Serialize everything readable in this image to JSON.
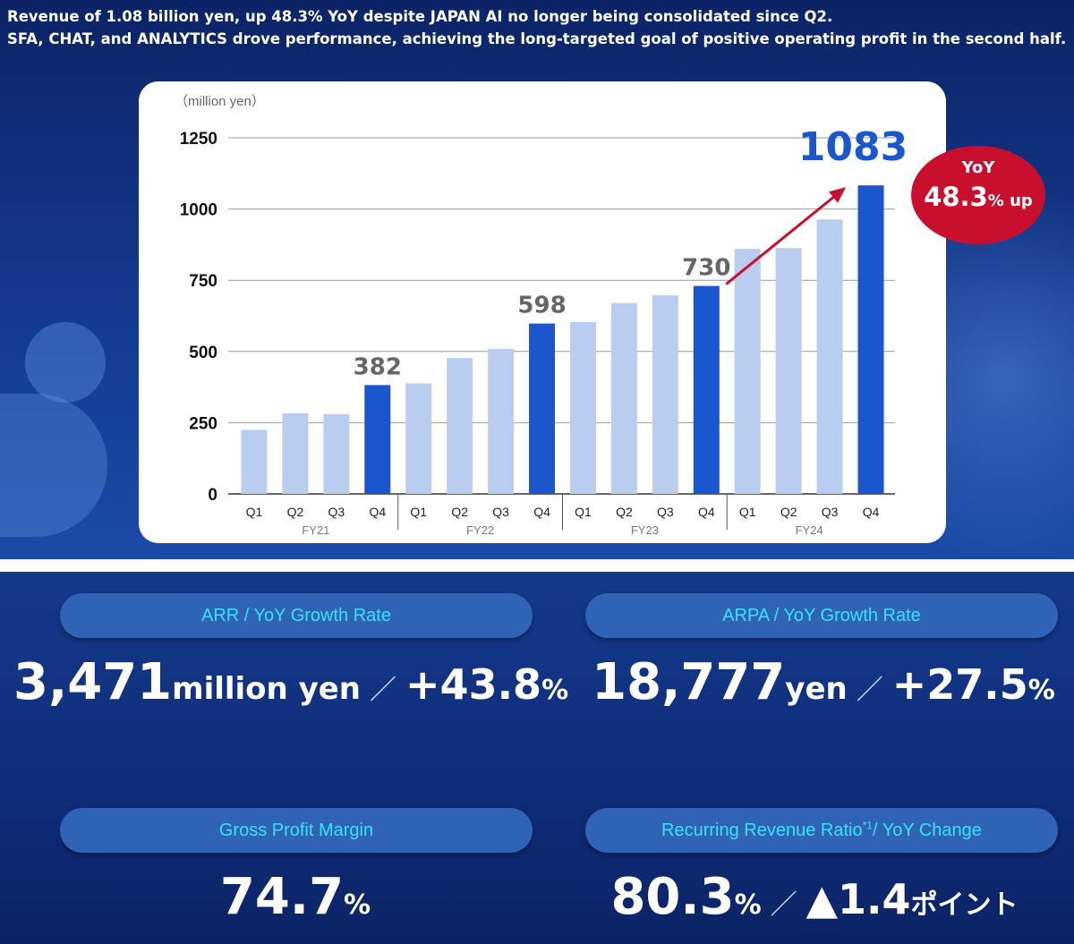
{
  "headline": {
    "line1": "Revenue of 1.08 billion yen, up 48.3% YoY despite JAPAN AI no longer being consolidated since Q2.",
    "line2": "SFA, CHAT, and ANALYTICS drove performance, achieving the long-targeted goal of positive operating profit in the second half."
  },
  "chart_data": {
    "type": "bar",
    "unit_label": "（million yen）",
    "ylim": [
      0,
      1250
    ],
    "yticks": [
      0,
      250,
      500,
      750,
      1000,
      1250
    ],
    "grid": true,
    "categories": [
      "Q1",
      "Q2",
      "Q3",
      "Q4",
      "Q1",
      "Q2",
      "Q3",
      "Q4",
      "Q1",
      "Q2",
      "Q3",
      "Q4",
      "Q1",
      "Q2",
      "Q3",
      "Q4"
    ],
    "groups": [
      "FY21",
      "FY22",
      "FY23",
      "FY24"
    ],
    "values": [
      225,
      283,
      280,
      382,
      388,
      477,
      509,
      598,
      603,
      670,
      697,
      730,
      860,
      863,
      963,
      1083
    ],
    "highlighted_indices": [
      3,
      7,
      11,
      15
    ],
    "data_labels": [
      {
        "index": 3,
        "text": "382"
      },
      {
        "index": 7,
        "text": "598"
      },
      {
        "index": 11,
        "text": "730"
      },
      {
        "index": 15,
        "text": "1083"
      }
    ],
    "colors": {
      "light_bar": "#b9cdf0",
      "dark_bar": "#1a56cc",
      "label_gray": "#666666",
      "label_blue": "#1a56cc",
      "arrow": "#c8102e"
    }
  },
  "yoy_badge": {
    "title": "YoY",
    "value": "48.3",
    "suffix": "% up",
    "color": "#c8102e"
  },
  "kpis": {
    "arr": {
      "label": "ARR / YoY Growth Rate",
      "value": "3,471",
      "unit": "million yen",
      "slash": "／",
      "growth": "+43.8",
      "growth_unit": "%"
    },
    "arpa": {
      "label": "ARPA / YoY Growth Rate",
      "value": "18,777",
      "unit": "yen",
      "slash": "／",
      "growth": "+27.5",
      "growth_unit": "%"
    },
    "gpm": {
      "label": "Gross Profit Margin",
      "value": "74.7",
      "unit": "%"
    },
    "rrr": {
      "label": "Recurring Revenue Ratio",
      "label_sup": "*1",
      "label_tail": "/ YoY Change",
      "value": "80.3",
      "unit": "%",
      "slash": "／",
      "change": "▲1.4",
      "change_unit": "ポイント"
    }
  }
}
